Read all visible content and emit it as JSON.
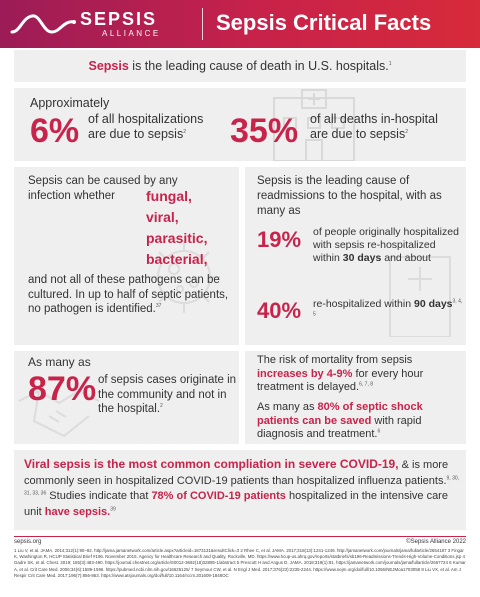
{
  "header": {
    "brand_name": "SEPSIS",
    "brand_sub": "ALLIANCE",
    "title": "Sepsis Critical Facts"
  },
  "intro": {
    "keyword": "Sepsis",
    "rest": " is the leading cause of death in U.S. hospitals.",
    "ref": "1"
  },
  "hosp_box": {
    "approx": "Approximately",
    "stat1_pct": "6%",
    "stat1_line1": "of all hospitalizations",
    "stat1_line2": "are due to sepsis",
    "stat1_ref": "2",
    "stat2_pct": "35%",
    "stat2_line1": "of all deaths in-hospital",
    "stat2_line2": "are due to sepsis",
    "stat2_ref": "2"
  },
  "causes_box": {
    "intro_line1": "Sepsis can be caused by any",
    "intro_line2": "infection whether",
    "pathogens": [
      "fungal,",
      "viral,",
      "parasitic,",
      "bacterial,"
    ],
    "rest": "and not all of these pathogens can be cultured. In up to half of septic patients, no pathogen is identified.",
    "ref": "37"
  },
  "readmit_box": {
    "intro": "Sepsis is the leading cause of readmissions to the hospital, with as many as",
    "stat1_pct": "19%",
    "stat1_text": "of people originally hospitalized with sepsis re-hospitalized within",
    "stat1_days": "30 days",
    "stat1_tail": " and about",
    "stat2_pct": "40%",
    "stat2_text": "re-hospitalized within",
    "stat2_days": "90 days",
    "stat2_ref": "3, 4, 5"
  },
  "community_box": {
    "label": "As many as",
    "pct": "87%",
    "text": "of sepsis cases originate in the community and not in the hospital.",
    "ref": "2"
  },
  "mortality_box": {
    "t1_start": "The risk of mortality from sepsis ",
    "t1_highlight": "increases by 4-9%",
    "t1_end": " for every hour treatment is delayed.",
    "t1_ref": "6, 7, 8",
    "t2_start": "As many as ",
    "t2_highlight": "80% of septic shock patients can be saved",
    "t2_end": " with rapid diagnosis and treatment.",
    "t2_ref": "6"
  },
  "covid_box": {
    "lead": "Viral sepsis is the most common compliation in severe COVID-19,",
    "body": " & is more commonly seen in hospitalized COVID-19 patients than hospitalized influenza patients.",
    "ref1": "9, 30, 31, 33, 36",
    "body2": " Studies indicate that ",
    "highlight": "78% of COVID-19 patients",
    "body3": " hospitalized in the intensive care unit ",
    "highlight2": "have sepsis.",
    "ref2": "39"
  },
  "footer": {
    "site": "sepsis.org",
    "copyright": "©Sepsis Alliance 2022",
    "references": "1 Liu V, et al. JAMA. 2014;312(1):90–92. http://jama.jamanetwork.com/article.aspx?articleid=1873131&resultClick=3 2 Rhee C, et al. JAMA. 2017;318(13):1241-1249. http://jamanetwork.com/journals/jama/fullarticle/2654187 3 Fingar K, Washington R, HCUP Statistical Brief #196. November 2015. Agency for Healthcare Research and Quality, Rockville, MD. https://www.hcup-us.ahrq.gov/reports/statbriefs/sb196-Readmissions-Trends-High-Volume-Conditions.jsp 4 Gadre SK, et al. Chest. 2019; 155(3):483-490. https://journal.chestnet.org/article/S0012-3692(18)32895-1/abstract 5 Prescott H and Angus D. JAMA. 2018;319(1):91. https://jamanetwork.com/journals/jama/fullarticle/2667724 6 Kumar A, et al. Crit Care Med. 2006;34(6):1589-1596. https://pubmed.ncbi.nlm.nih.gov/16625125/ 7 Seymour CW, et al. N Engl J Med. 2017;376(23):2235-2244. https://www.nejm.org/doi/full/10.1056/NEJMoa1703058 8 Liu VX, et al. Am J Respir Crit Care Med. 2017;196(7):856-863. https://www.atsjournals.org/doi/full/10.1164/rccm.201609-1848OC"
  },
  "colors": {
    "accent": "#c8234a",
    "header_start": "#9c1c57",
    "header_end": "#d72a3a",
    "panel": "#efefef"
  }
}
